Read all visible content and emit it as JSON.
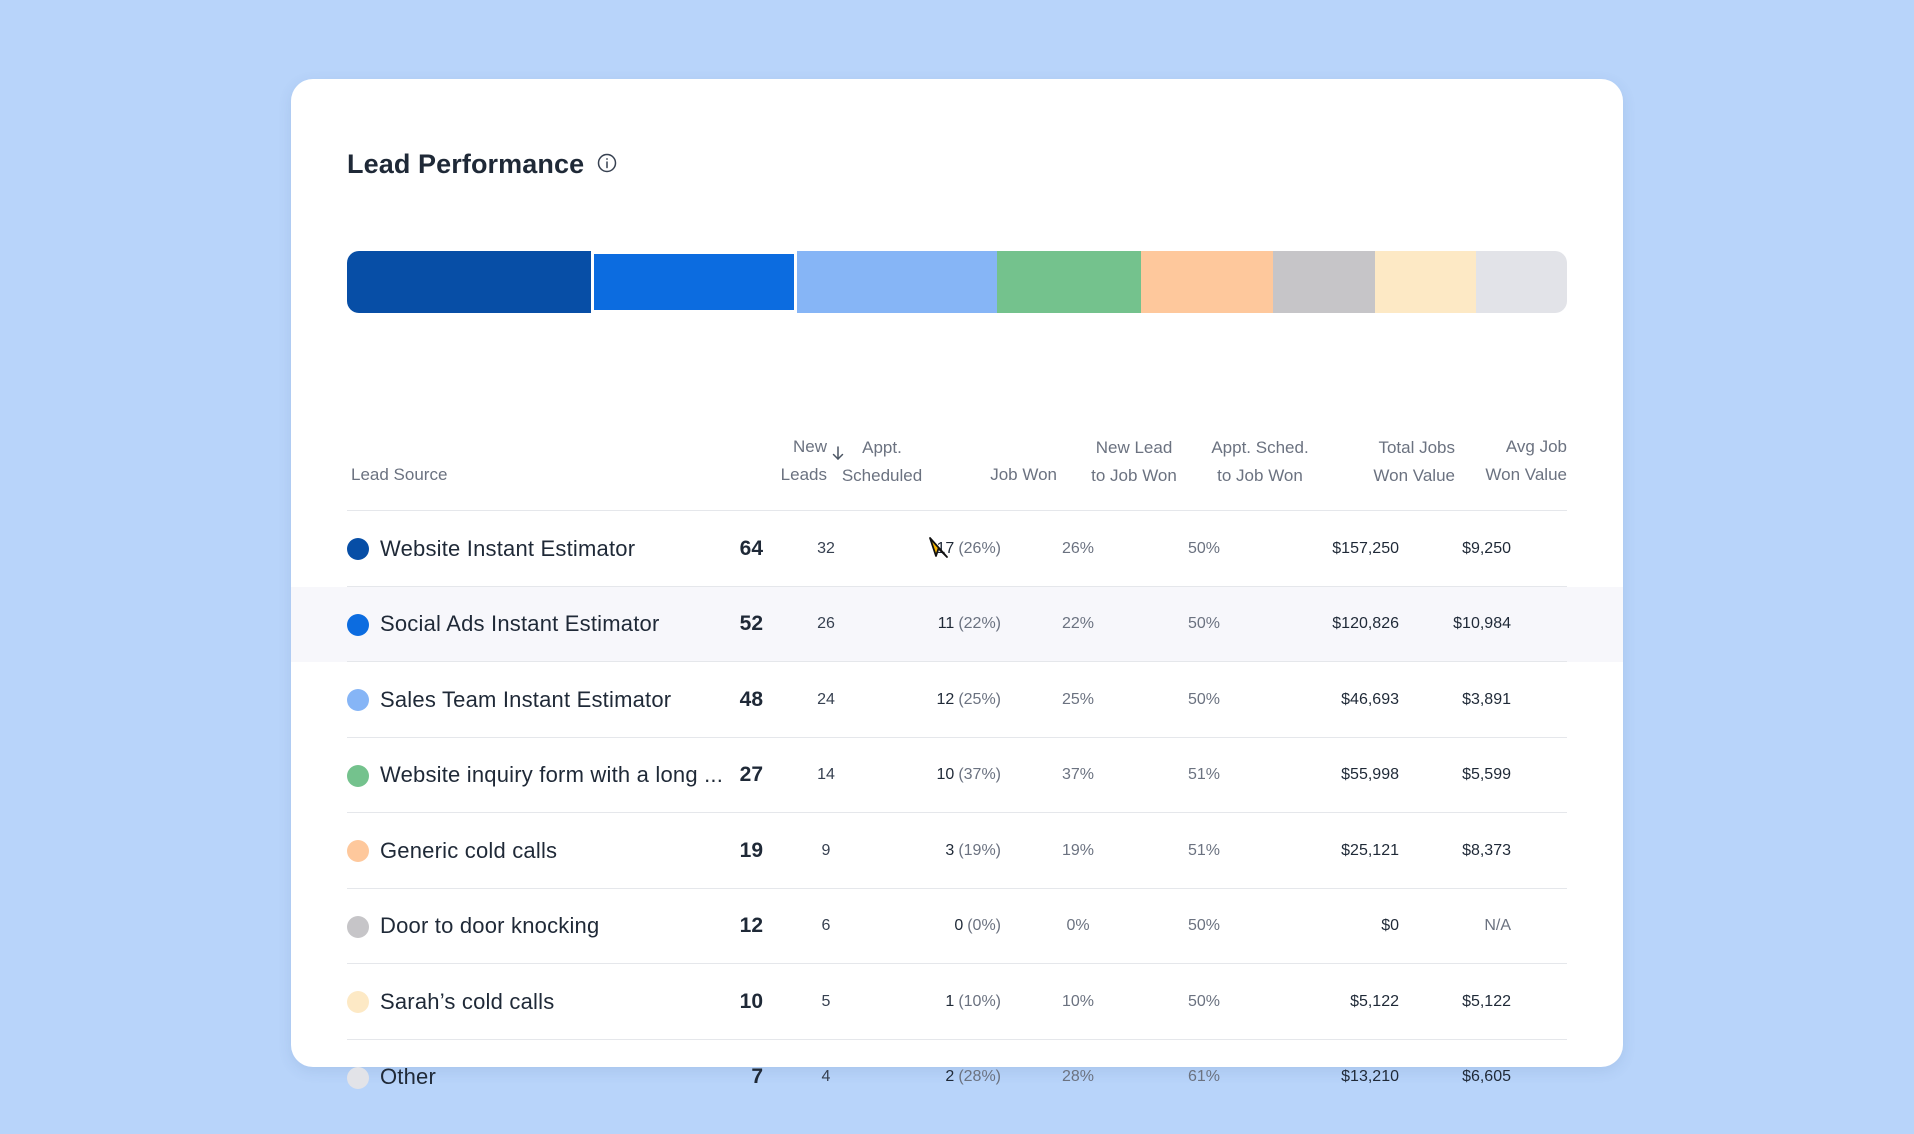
{
  "card": {
    "title": "Lead Performance",
    "info_icon": "info-circle-icon"
  },
  "stack_colors": [
    "#074ea6",
    "#0c6ce0",
    "#86b5f6",
    "#74c28d",
    "#fec89c",
    "#c6c5c8",
    "#fde9c5",
    "#e2e3e8"
  ],
  "columns": {
    "source": "Lead Source",
    "leads_line1": "New",
    "leads_line2": "Leads",
    "appt_line1": "Appt.",
    "appt_line2": "Scheduled",
    "won": "Job Won",
    "nl_line1": "New Lead",
    "nl_line2": "to Job Won",
    "as_line1": "Appt. Sched.",
    "as_line2": "to Job Won",
    "tot_line1": "Total Jobs",
    "tot_line2": "Won Value",
    "avg_line1": "Avg Job",
    "avg_line2": "Won Value",
    "sort_icon": "arrow-down-icon"
  },
  "rows": [
    {
      "color": "#074ea6",
      "source": "Website Instant Estimator",
      "leads": "64",
      "appt": "32",
      "won": "17",
      "won_pct": "(26%)",
      "new_lead_to_won": "26%",
      "appt_to_won": "50%",
      "total_value": "$157,250",
      "avg_value": "$9,250"
    },
    {
      "color": "#0c6ce0",
      "source": "Social Ads Instant Estimator",
      "leads": "52",
      "appt": "26",
      "won": "11",
      "won_pct": "(22%)",
      "new_lead_to_won": "22%",
      "appt_to_won": "50%",
      "total_value": "$120,826",
      "avg_value": "$10,984"
    },
    {
      "color": "#86b5f6",
      "source": "Sales Team Instant Estimator",
      "leads": "48",
      "appt": "24",
      "won": "12",
      "won_pct": "(25%)",
      "new_lead_to_won": "25%",
      "appt_to_won": "50%",
      "total_value": "$46,693",
      "avg_value": "$3,891"
    },
    {
      "color": "#74c28d",
      "source": "Website inquiry form with a long ...",
      "leads": "27",
      "appt": "14",
      "won": "10",
      "won_pct": "(37%)",
      "new_lead_to_won": "37%",
      "appt_to_won": "51%",
      "total_value": "$55,998",
      "avg_value": "$5,599"
    },
    {
      "color": "#fec89c",
      "source": "Generic cold calls",
      "leads": "19",
      "appt": "9",
      "won": "3",
      "won_pct": "(19%)",
      "new_lead_to_won": "19%",
      "appt_to_won": "51%",
      "total_value": "$25,121",
      "avg_value": "$8,373"
    },
    {
      "color": "#c6c5c8",
      "source": "Door to door knocking",
      "leads": "12",
      "appt": "6",
      "won": "0",
      "won_pct": "(0%)",
      "new_lead_to_won": "0%",
      "appt_to_won": "50%",
      "total_value": "$0",
      "avg_value": "N/A"
    },
    {
      "color": "#fde9c5",
      "source": "Sarah’s cold calls",
      "leads": "10",
      "appt": "5",
      "won": "1",
      "won_pct": "(10%)",
      "new_lead_to_won": "10%",
      "appt_to_won": "50%",
      "total_value": "$5,122",
      "avg_value": "$5,122"
    },
    {
      "color": "#e2e3e8",
      "source": "Other",
      "leads": "7",
      "appt": "4",
      "won": "2",
      "won_pct": "(28%)",
      "new_lead_to_won": "28%",
      "appt_to_won": "61%",
      "total_value": "$13,210",
      "avg_value": "$6,605"
    }
  ],
  "highlighted_row_index": 1
}
